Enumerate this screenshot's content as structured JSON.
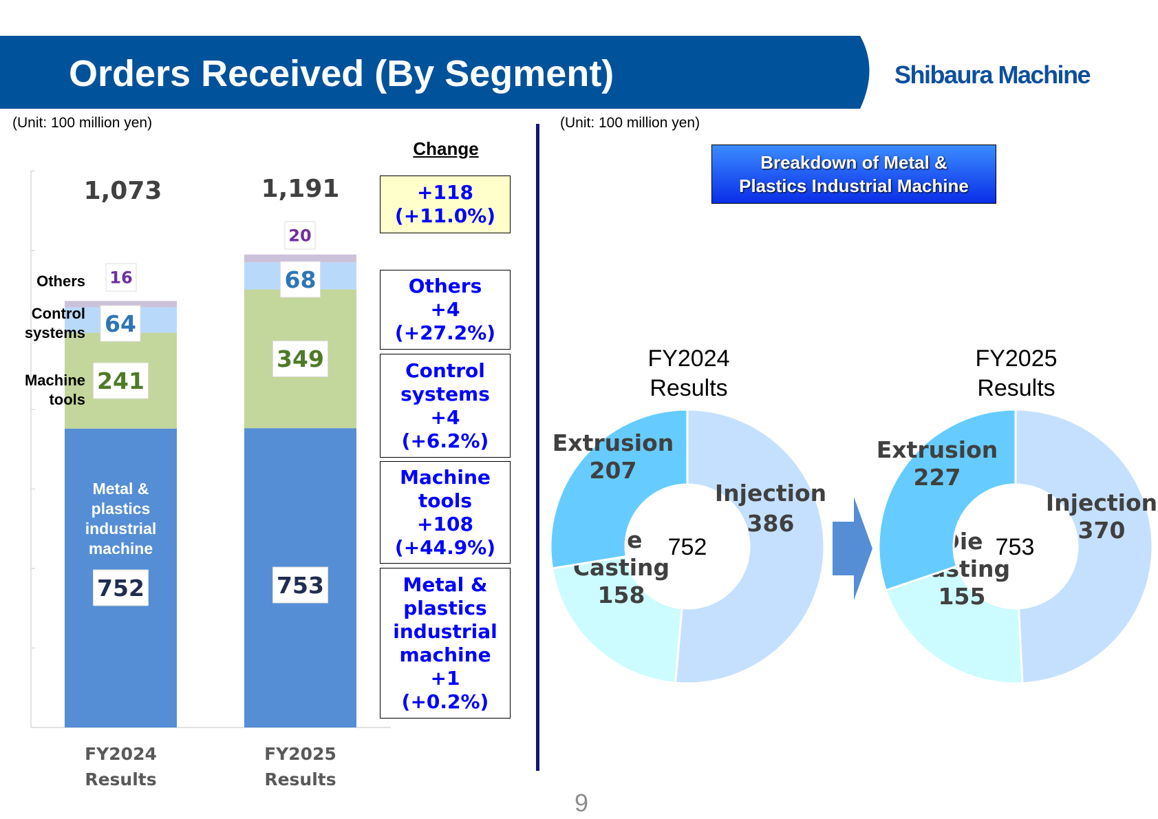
{
  "header": {
    "title": "Orders Received (By Segment)",
    "logo_text": "Shibaura Machine",
    "band_color": "#00529b"
  },
  "left_panel": {
    "unit": "(Unit: 100 million yen)"
  },
  "right_panel": {
    "unit": "(Unit: 100 million yen)",
    "breakdown_title": "Breakdown of Metal &\nPlastics Industrial Machine"
  },
  "page_number": "9",
  "chart_data": [
    {
      "type": "bar",
      "stacked": true,
      "categories": [
        "FY2024\nResults",
        "FY2025\nResults"
      ],
      "totals": [
        "1,073",
        "1,191"
      ],
      "series": [
        {
          "name": "Metal &\nplastics\nindustrial\nmachine",
          "values": [
            752,
            753
          ],
          "color": "#558ed5",
          "label_color": "#1f2d50",
          "segment_text_color": "#ffffff"
        },
        {
          "name": "Machine\ntools",
          "values": [
            241,
            349
          ],
          "color": "#c3d69b",
          "label_color": "#4f7a28"
        },
        {
          "name": "Control\nsystems",
          "values": [
            64,
            68
          ],
          "color": "#b9d9fb",
          "label_color": "#2e75b6"
        },
        {
          "name": "Others",
          "values": [
            16,
            20
          ],
          "color": "#ccc1da",
          "label_color": "#7030a0"
        }
      ],
      "change": {
        "heading": "Change",
        "total": "+118\n(+11.0%)",
        "by_segment": [
          "Others\n+4\n(+27.2%)",
          "Control\nsystems\n+4\n(+6.2%)",
          "Machine\ntools\n+108\n(+44.9%)",
          "Metal &\nplastics\nindustrial\nmachine\n+1\n(+0.2%)"
        ],
        "total_box_color": "#ffffcc",
        "text_color": "#0000ff"
      },
      "grid": false,
      "ylim": [
        0,
        1400
      ]
    },
    {
      "type": "pie",
      "donut": true,
      "title": "FY2024\nResults",
      "center_label": "752",
      "slices": [
        {
          "label": "Injection",
          "value": 386,
          "color": "#c5e0ff"
        },
        {
          "label": "Die\nCasting",
          "value": 158,
          "color": "#ccfcff"
        },
        {
          "label": "Extrusion",
          "value": 207,
          "color": "#66ccff"
        }
      ]
    },
    {
      "type": "pie",
      "donut": true,
      "title": "FY2025\nResults",
      "center_label": "753",
      "slices": [
        {
          "label": "Injection",
          "value": 370,
          "color": "#c5e0ff"
        },
        {
          "label": "Die\nCasting",
          "value": 155,
          "color": "#ccfcff"
        },
        {
          "label": "Extrusion",
          "value": 227,
          "color": "#66ccff"
        }
      ]
    }
  ]
}
